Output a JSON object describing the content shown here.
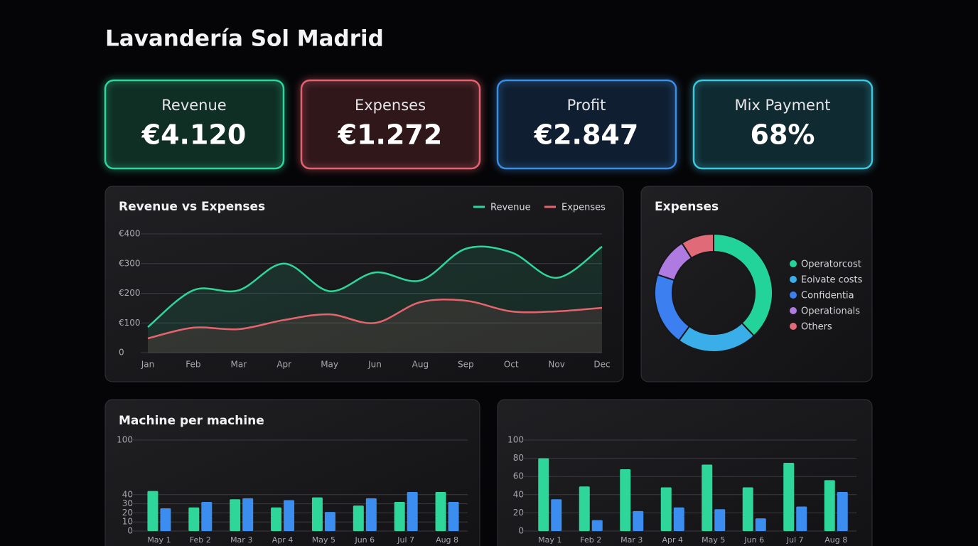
{
  "title": "Lavandería Sol Madrid",
  "kpis": [
    {
      "label": "Revenue",
      "value": "€4.120",
      "color": "#2fd69a"
    },
    {
      "label": "Expenses",
      "value": "€1.272",
      "color": "#e5646e"
    },
    {
      "label": "Profit",
      "value": "€2.847",
      "color": "#3a8ee6"
    },
    {
      "label": "Mix Payment",
      "value": "68%",
      "color": "#3ec8e0"
    }
  ],
  "chart_data": [
    {
      "type": "line",
      "title": "Revenue vs Expenses",
      "categories": [
        "Jan",
        "Feb",
        "Mar",
        "Apr",
        "May",
        "Jun",
        "Aug",
        "Sep",
        "Oct",
        "Nov",
        "Dec"
      ],
      "series": [
        {
          "name": "Revenue",
          "color": "#2fd69a",
          "values": [
            86,
            210,
            210,
            300,
            207,
            270,
            243,
            350,
            338,
            252,
            357
          ]
        },
        {
          "name": "Expenses",
          "color": "#e5646e",
          "values": [
            48,
            84,
            79,
            110,
            129,
            100,
            170,
            175,
            139,
            139,
            151
          ]
        }
      ],
      "ylim": [
        0,
        400
      ],
      "yticks": [
        0,
        {
          "value": 100,
          "label": "€100"
        },
        {
          "value": 200,
          "label": "€200"
        },
        {
          "value": 300,
          "label": "€300"
        },
        {
          "value": 400,
          "label": "€400"
        }
      ],
      "grid": true
    },
    {
      "type": "pie",
      "title": "Expenses",
      "categories": [
        "Operatorcost",
        "Eoivate costs",
        "Confidentia",
        "Operationals",
        "Others"
      ],
      "values": [
        38,
        22,
        20,
        11,
        9
      ],
      "colors": [
        "#22d39a",
        "#3aaee8",
        "#3b7ff0",
        "#b07be0",
        "#e06a78"
      ]
    },
    {
      "type": "bar",
      "title": "Machine per machine",
      "categories": [
        "May 1",
        "Feb 2",
        "Mar 3",
        "Apr 4",
        "May 5",
        "Jun 6",
        "Jul 7",
        "Aug 8"
      ],
      "series": [
        {
          "color": "#2fd69a",
          "values": [
            44,
            26,
            35,
            26,
            37,
            28,
            32,
            43
          ]
        },
        {
          "color": "#3b8ef0",
          "values": [
            25,
            32,
            36,
            34,
            21,
            36,
            43,
            32
          ]
        }
      ],
      "ylim": [
        0,
        100
      ],
      "yticks": [
        0,
        10,
        20,
        30,
        40,
        100
      ],
      "grid": true
    },
    {
      "type": "bar",
      "categories": [
        "May 1",
        "Feb 2",
        "Mar 3",
        "Apr 4",
        "May 5",
        "Jun 6",
        "Jul 7",
        "Aug 8"
      ],
      "series": [
        {
          "color": "#2fd69a",
          "values": [
            80,
            49,
            68,
            48,
            73,
            48,
            75,
            56
          ]
        },
        {
          "color": "#3b8ef0",
          "values": [
            35,
            12,
            22,
            26,
            24,
            14,
            27,
            43
          ]
        }
      ],
      "ylim": [
        0,
        100
      ],
      "yticks": [
        0,
        20,
        40,
        60,
        80,
        100
      ],
      "grid": true
    }
  ]
}
